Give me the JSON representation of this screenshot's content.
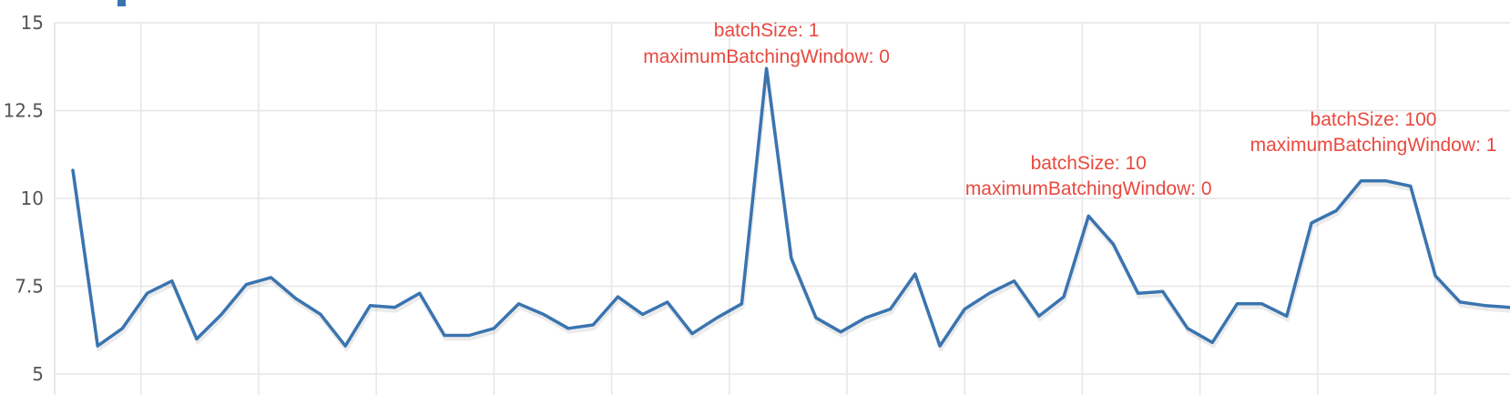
{
  "chart_data": {
    "type": "line",
    "title": "",
    "xlabel": "",
    "ylabel": "",
    "ylim": [
      5,
      15
    ],
    "yticks": [
      5,
      7.5,
      10,
      12.5,
      15
    ],
    "ytick_labels": [
      "5",
      "7.5",
      "10",
      "12.5",
      "15"
    ],
    "grid": true,
    "legend": "none",
    "series": [
      {
        "color": "#3a74b0",
        "x": [
          0,
          1,
          2,
          3,
          4,
          5,
          6,
          7,
          8,
          9,
          10,
          11,
          12,
          13,
          14,
          15,
          16,
          17,
          18,
          19,
          20,
          21,
          22,
          23,
          24,
          25,
          26,
          27,
          28,
          29,
          30,
          31,
          32,
          33,
          34,
          35,
          36,
          37,
          38,
          39,
          40,
          41,
          42,
          43,
          44,
          45,
          46,
          47,
          48,
          49,
          50,
          51,
          52,
          53,
          54,
          55,
          56,
          57,
          58
        ],
        "values": [
          10.8,
          5.8,
          6.3,
          7.3,
          7.65,
          6.0,
          6.7,
          7.55,
          7.75,
          7.15,
          6.7,
          5.8,
          6.95,
          6.9,
          7.3,
          6.1,
          6.1,
          6.3,
          7.0,
          6.7,
          6.3,
          6.4,
          7.2,
          6.7,
          7.05,
          6.15,
          6.6,
          7.0,
          13.7,
          8.3,
          6.6,
          6.2,
          6.6,
          6.85,
          7.85,
          5.8,
          6.85,
          7.3,
          7.65,
          6.65,
          7.2,
          9.5,
          8.7,
          7.3,
          7.35,
          6.3,
          5.9,
          7.0,
          7.0,
          6.65,
          9.3,
          9.65,
          10.5,
          10.5,
          10.35,
          7.8,
          7.05,
          6.95,
          6.9
        ]
      }
    ],
    "annotations": [
      {
        "x": 28,
        "line1": "batchSize: 1",
        "line2": "maximumBatchingWindow: 0",
        "color": "#e8493f"
      },
      {
        "x": 41,
        "line1": "batchSize: 10",
        "line2": "maximumBatchingWindow: 0",
        "color": "#e8493f"
      },
      {
        "x": 52.5,
        "line1": "batchSize: 100",
        "line2": "maximumBatchingWindow: 1",
        "color": "#e8493f"
      }
    ]
  }
}
